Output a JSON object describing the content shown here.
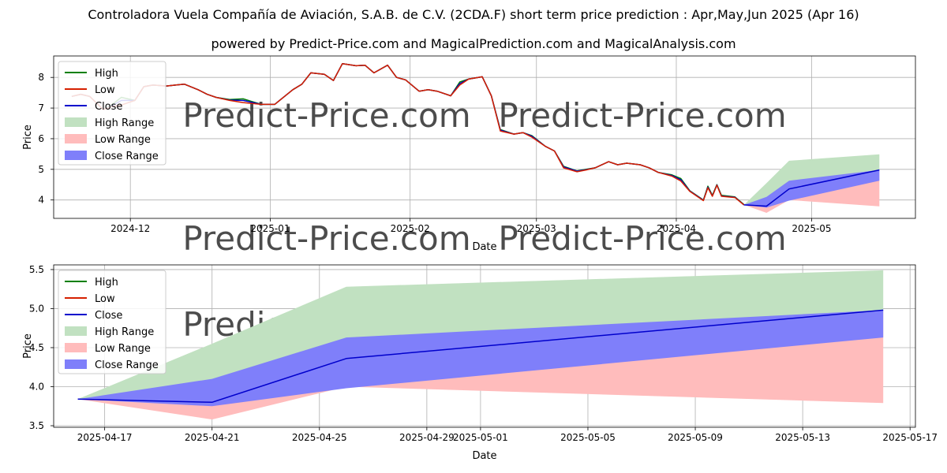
{
  "header": {
    "title": "Controladora Vuela Compañía de Aviación, S.A.B. de C.V. (2CDA.F) short term price prediction : Apr,May,Jun 2025 (Apr 16)",
    "subtitle": "powered by Predict-Price.com and MagicalPrediction.com and MagicalAnalysis.com"
  },
  "watermark": "Predict-Price.com",
  "colors": {
    "high": "#007f00",
    "low": "#d62000",
    "close": "#0000cc",
    "high_range": "#c1e1c1",
    "low_range": "#ffbcbc",
    "close_range": "#7f7ffa",
    "grid": "#b0b0b0"
  },
  "chart_data": [
    {
      "type": "line",
      "xlabel": "Date",
      "ylabel": "Price",
      "x_ticks": [
        "2024-12",
        "2025-01",
        "2025-02",
        "2025-03",
        "2025-04",
        "2025-05"
      ],
      "y_ticks": [
        "4",
        "5",
        "6",
        "7",
        "8"
      ],
      "xlim": [
        "2024-11-14",
        "2025-05-24"
      ],
      "ylim": [
        3.4,
        8.7
      ],
      "grid": true,
      "legend_position": "upper-left",
      "legend": [
        "High",
        "Low",
        "Close",
        "High Range",
        "Low Range",
        "Close Range"
      ],
      "history": {
        "dates": [
          "2024-11-18",
          "2024-11-20",
          "2024-11-22",
          "2024-11-25",
          "2024-11-27",
          "2024-11-29",
          "2024-12-02",
          "2024-12-04",
          "2024-12-06",
          "2024-12-09",
          "2024-12-11",
          "2024-12-13",
          "2024-12-16",
          "2024-12-18",
          "2024-12-20",
          "2024-12-23",
          "2024-12-26",
          "2024-12-30",
          "2025-01-02",
          "2025-01-06",
          "2025-01-08",
          "2025-01-10",
          "2025-01-13",
          "2025-01-15",
          "2025-01-17",
          "2025-01-20",
          "2025-01-22",
          "2025-01-24",
          "2025-01-27",
          "2025-01-29",
          "2025-01-31",
          "2025-02-03",
          "2025-02-05",
          "2025-02-07",
          "2025-02-10",
          "2025-02-12",
          "2025-02-14",
          "2025-02-17",
          "2025-02-19",
          "2025-02-21",
          "2025-02-24",
          "2025-02-26",
          "2025-02-28",
          "2025-03-03",
          "2025-03-05",
          "2025-03-07",
          "2025-03-10",
          "2025-03-12",
          "2025-03-14",
          "2025-03-17",
          "2025-03-19",
          "2025-03-21",
          "2025-03-24",
          "2025-03-26",
          "2025-03-28",
          "2025-03-31",
          "2025-04-02",
          "2025-04-04",
          "2025-04-07",
          "2025-04-08",
          "2025-04-09",
          "2025-04-10",
          "2025-04-11",
          "2025-04-14",
          "2025-04-16"
        ],
        "high": [
          7.38,
          7.45,
          7.38,
          6.95,
          7.12,
          7.35,
          7.25,
          7.7,
          7.75,
          7.72,
          7.75,
          7.78,
          7.6,
          7.45,
          7.35,
          7.28,
          7.3,
          7.12,
          7.12,
          7.6,
          7.78,
          8.15,
          8.1,
          7.9,
          8.45,
          8.38,
          8.4,
          8.15,
          8.4,
          8.0,
          7.92,
          7.55,
          7.6,
          7.55,
          7.4,
          7.85,
          7.95,
          8.02,
          7.4,
          6.3,
          6.15,
          6.2,
          6.1,
          5.75,
          5.6,
          5.1,
          4.95,
          5.0,
          5.05,
          5.25,
          5.15,
          5.2,
          5.15,
          5.05,
          4.9,
          4.82,
          4.7,
          4.3,
          4.0,
          4.45,
          4.15,
          4.5,
          4.15,
          4.1,
          3.85
        ],
        "low": [
          7.38,
          7.45,
          7.38,
          6.95,
          7.05,
          7.1,
          7.25,
          7.7,
          7.75,
          7.72,
          7.75,
          7.78,
          7.6,
          7.45,
          7.35,
          7.25,
          7.18,
          7.12,
          7.12,
          7.6,
          7.78,
          8.15,
          8.1,
          7.9,
          8.45,
          8.38,
          8.4,
          8.15,
          8.4,
          8.0,
          7.92,
          7.55,
          7.6,
          7.55,
          7.4,
          7.75,
          7.95,
          8.02,
          7.4,
          6.25,
          6.15,
          6.2,
          6.05,
          5.75,
          5.6,
          5.05,
          4.92,
          4.98,
          5.05,
          5.25,
          5.15,
          5.2,
          5.15,
          5.05,
          4.9,
          4.78,
          4.62,
          4.28,
          3.98,
          4.4,
          4.12,
          4.48,
          4.12,
          4.08,
          3.84
        ],
        "close": [
          7.38,
          7.45,
          7.38,
          6.95,
          7.08,
          7.25,
          7.25,
          7.7,
          7.75,
          7.72,
          7.75,
          7.78,
          7.6,
          7.45,
          7.35,
          7.26,
          7.25,
          7.12,
          7.12,
          7.6,
          7.78,
          8.15,
          8.1,
          7.9,
          8.45,
          8.38,
          8.4,
          8.15,
          8.4,
          8.0,
          7.92,
          7.55,
          7.6,
          7.55,
          7.4,
          7.8,
          7.95,
          8.02,
          7.4,
          6.28,
          6.15,
          6.2,
          6.08,
          5.75,
          5.6,
          5.08,
          4.94,
          4.99,
          5.05,
          5.25,
          5.15,
          5.2,
          5.15,
          5.05,
          4.9,
          4.8,
          4.66,
          4.29,
          3.99,
          4.42,
          4.13,
          4.49,
          4.13,
          4.09,
          3.84
        ]
      },
      "forecast": {
        "dates": [
          "2025-04-16",
          "2025-04-21",
          "2025-04-26",
          "2025-05-16"
        ],
        "high": [
          3.84,
          4.55,
          5.28,
          5.49
        ],
        "low": [
          3.84,
          3.58,
          4.0,
          3.79
        ],
        "close": [
          3.84,
          3.8,
          4.36,
          4.98
        ],
        "close_low": [
          3.84,
          3.75,
          3.98,
          4.63
        ],
        "close_high": [
          3.84,
          4.1,
          4.63,
          4.98
        ]
      }
    },
    {
      "type": "line",
      "xlabel": "Date",
      "ylabel": "Price",
      "x_ticks": [
        "2025-04-17",
        "2025-04-21",
        "2025-04-25",
        "2025-04-29",
        "2025-05-01",
        "2025-05-05",
        "2025-05-09",
        "2025-05-13",
        "2025-05-17"
      ],
      "y_ticks": [
        "3.5",
        "4.0",
        "4.5",
        "5.0",
        "5.5"
      ],
      "xlim": [
        "2025-04-15.1",
        "2025-05-17.2"
      ],
      "ylim": [
        3.48,
        5.56
      ],
      "grid": true,
      "legend_position": "upper-left",
      "legend": [
        "High",
        "Low",
        "Close",
        "High Range",
        "Low Range",
        "Close Range"
      ],
      "forecast": {
        "dates": [
          "2025-04-16",
          "2025-04-21",
          "2025-04-26",
          "2025-05-16"
        ],
        "high": [
          3.84,
          4.55,
          5.28,
          5.49
        ],
        "low": [
          3.84,
          3.58,
          4.0,
          3.79
        ],
        "close": [
          3.84,
          3.8,
          4.36,
          4.98
        ],
        "close_low": [
          3.84,
          3.75,
          3.98,
          4.63
        ],
        "close_high": [
          3.84,
          4.1,
          4.63,
          4.98
        ]
      }
    }
  ]
}
